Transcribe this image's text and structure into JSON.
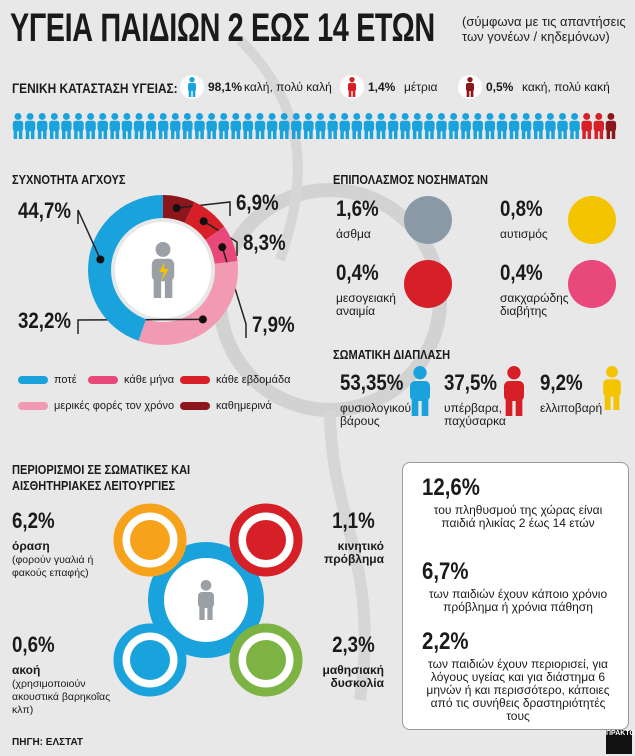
{
  "header": {
    "title": "ΥΓΕΙΑ ΠΑΙΔΙΩΝ 2 ΕΩΣ 14 ΕΤΩΝ",
    "subtitle": "(σύμφωνα με τις απαντήσεις των γονέων / κηδεμόνων)"
  },
  "general_health": {
    "label": "ΓΕΝΙΚΗ ΚΑΤΑΣΤΑΣΗ ΥΓΕΙΑΣ:",
    "items": [
      {
        "value": "98,1%",
        "text": "καλή, πολύ καλή"
      },
      {
        "value": "1,4%",
        "text": "μέτρια"
      },
      {
        "value": "0,5%",
        "text": "κακή, πολύ κακή"
      }
    ]
  },
  "chart_data": {
    "type": "donut",
    "title": "ΣΥΧΝΟΤΗΤΑ ΑΓΧΟΥΣ",
    "categories": [
      "καθημερινά",
      "κάθε εβδομάδα",
      "κάθε μήνα",
      "μερικές φορές τον χρόνο",
      "ποτέ"
    ],
    "values": [
      6.9,
      8.3,
      7.9,
      32.2,
      44.7
    ],
    "value_labels": [
      "6,9%",
      "8,3%",
      "7,9%",
      "32,2%",
      "44,7%"
    ],
    "colors": [
      "#8b161c",
      "#d61f26",
      "#e8497a",
      "#f29ab3",
      "#1aa2dd"
    ]
  },
  "diseases": {
    "title": "ΕΠΙΠΟΛΑΣΜΟΣ ΝΟΣΗΜΑΤΩΝ",
    "items": [
      {
        "value": "1,6%",
        "label": "άσθμα"
      },
      {
        "value": "0,8%",
        "label": "αυτισμός"
      },
      {
        "value": "0,4%",
        "label": "μεσογειακή αναιμία"
      },
      {
        "value": "0,4%",
        "label": "σακχαρώδης διαβήτης"
      }
    ]
  },
  "body_type": {
    "title": "ΣΩΜΑΤΙΚΗ ΔΙΑΠΛΑΣΗ",
    "items": [
      {
        "value": "53,35%",
        "label": "φυσιολογικού βάρους"
      },
      {
        "value": "37,5%",
        "label": "υπέρβαρα, παχύσαρκα"
      },
      {
        "value": "9,2%",
        "label": "ελλιποβαρή"
      }
    ]
  },
  "limitations": {
    "title": "ΠΕΡΙΟΡΙΣΜΟΙ ΣΕ ΣΩΜΑΤΙΚΕΣ ΚΑΙ ΑΙΣΘΗΤΗΡΙΑΚΕΣ ΛΕΙΤΟΥΡΓΙΕΣ",
    "items": [
      {
        "value": "6,2%",
        "label": "όραση",
        "note": "(φορούν γυαλιά ή φακούς επαφής)"
      },
      {
        "value": "1,1%",
        "label": "κινητικό πρόβλημα"
      },
      {
        "value": "0,6%",
        "label": "ακοή",
        "note": "(χρησιμοποιούν ακουστικά βαρηκοΐας κλπ)"
      },
      {
        "value": "2,3%",
        "label": "μαθησιακή δυσκολία"
      }
    ]
  },
  "facts": [
    {
      "value": "12,6%",
      "text": "του πληθυσμού της χώρας είναι παιδιά ηλικίας 2 έως 14 ετών"
    },
    {
      "value": "6,7%",
      "text": "των παιδιών έχουν κάποιο χρόνιο πρόβλημα ή χρόνια πάθηση"
    },
    {
      "value": "2,2%",
      "text": "των παιδιών έχουν περιορισεί, για λόγους υγείας και για διάστημα 6 μηνών ή και περισσότερο, κάποιες από τις συνήθεις δραστηριότητές τους"
    }
  ],
  "source": "ΠΗΓΗ: ΕΛΣΤΑΤ",
  "logo": "ΠΡΑΚΤΟΡΕΙΟ"
}
